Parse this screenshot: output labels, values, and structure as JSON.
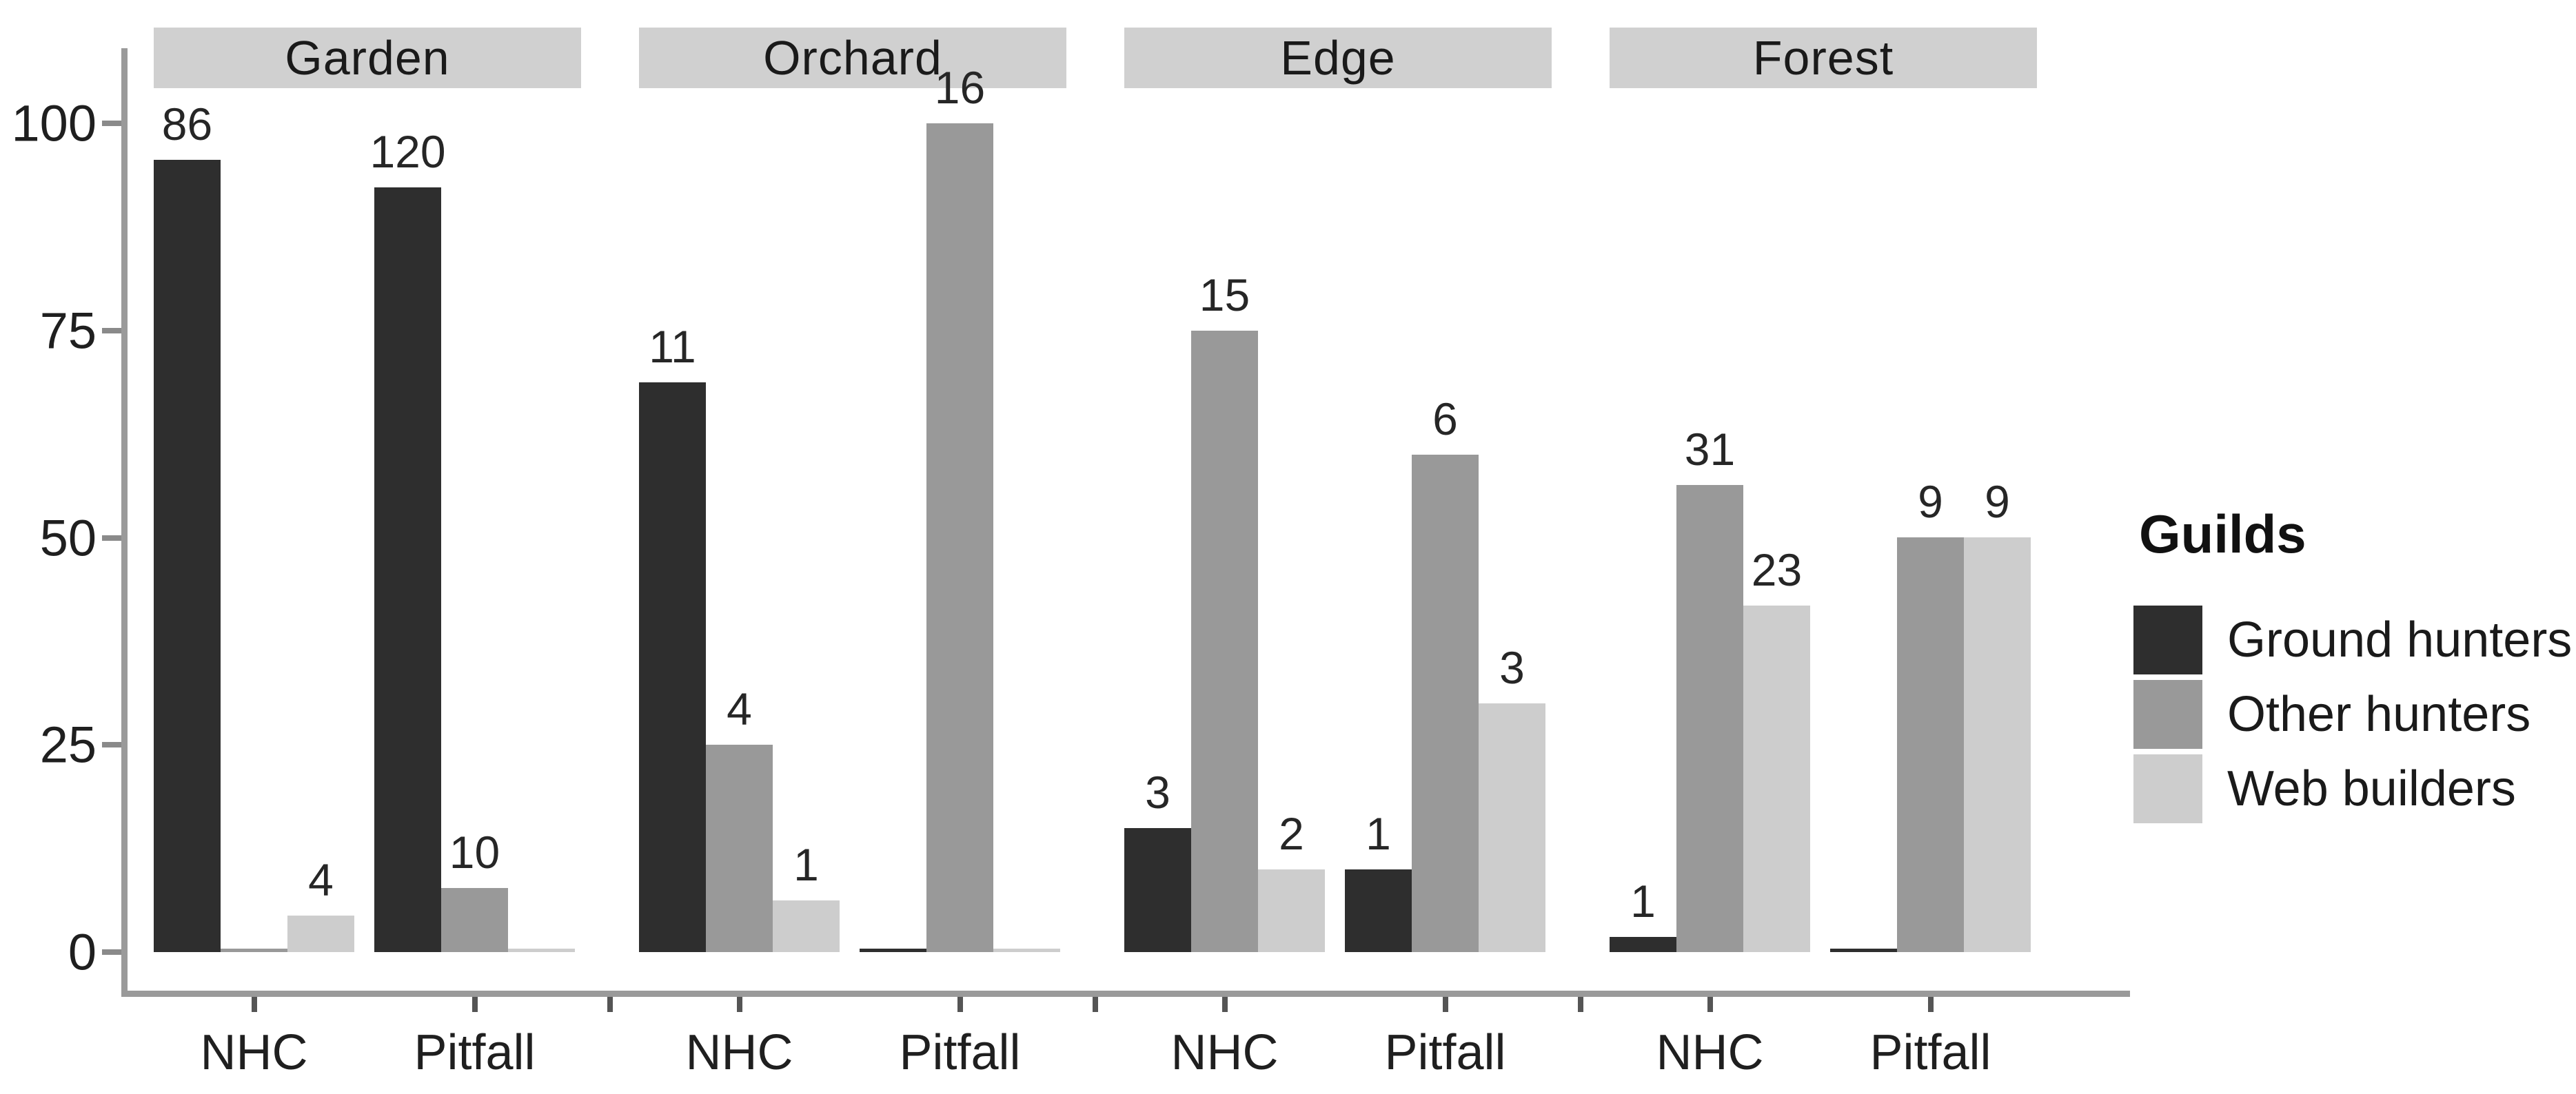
{
  "chart_data": {
    "type": "bar",
    "title": "",
    "legend_title": "Guilds",
    "legend_position": "right",
    "series_names": [
      "Ground hunters",
      "Other hunters",
      "Web builders"
    ],
    "series_colors": [
      "#2e2e2e",
      "#999999",
      "#cdcdcd"
    ],
    "facets": [
      "Garden",
      "Orchard",
      "Edge",
      "Forest"
    ],
    "groups_per_facet": [
      "NHC",
      "Pitfall"
    ],
    "bar_height_unit": "percent_of_group_total",
    "bar_label_unit": "raw_count",
    "counts": [
      {
        "facet": "Garden",
        "group": "NHC",
        "values": [
          86,
          0,
          4
        ]
      },
      {
        "facet": "Garden",
        "group": "Pitfall",
        "values": [
          120,
          10,
          0
        ]
      },
      {
        "facet": "Orchard",
        "group": "NHC",
        "values": [
          11,
          4,
          1
        ]
      },
      {
        "facet": "Orchard",
        "group": "Pitfall",
        "values": [
          0,
          16,
          0
        ]
      },
      {
        "facet": "Edge",
        "group": "NHC",
        "values": [
          3,
          15,
          2
        ]
      },
      {
        "facet": "Edge",
        "group": "Pitfall",
        "values": [
          1,
          6,
          3
        ]
      },
      {
        "facet": "Forest",
        "group": "NHC",
        "values": [
          1,
          31,
          23
        ]
      },
      {
        "facet": "Forest",
        "group": "Pitfall",
        "values": [
          0,
          9,
          9
        ]
      }
    ],
    "y_axis": {
      "ticks": [
        0,
        25,
        50,
        75,
        100
      ],
      "range": [
        0,
        100
      ],
      "label": ""
    },
    "grid": "off"
  },
  "colors": {
    "axis_line": "#9a9a9a",
    "axis_tick": "#555555",
    "facet_strip_bg": "#d0d0d0",
    "text": "#1f1f1f",
    "background": "#ffffff"
  }
}
